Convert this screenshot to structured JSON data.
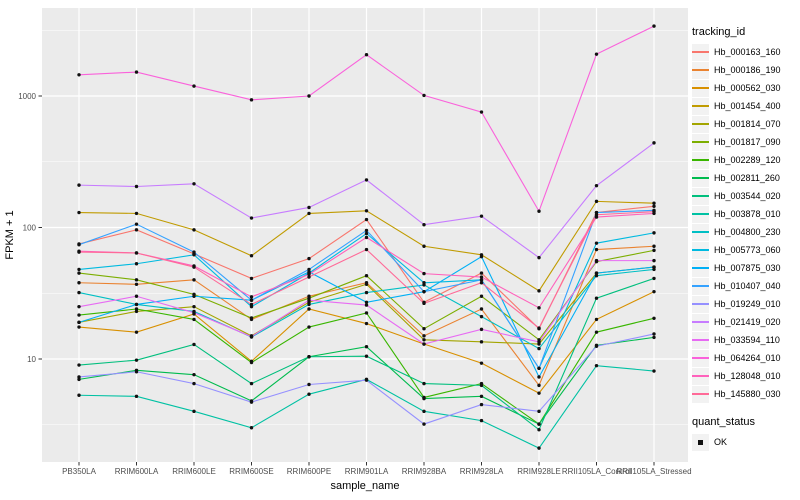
{
  "figure": {
    "background": "#FFFFFF",
    "panel_background": "#EBEBEB",
    "grid_color": "#FFFFFF",
    "tick_color": "#333333",
    "axis_text_color": "#4D4D4D",
    "title_text_color": "#000000",
    "point_color": "#111111"
  },
  "axes": {
    "x_title": "sample_name",
    "y_title": "FPKM + 1",
    "y_tick_labels": [
      "10",
      "100",
      "1000"
    ],
    "y_tick_values": [
      10,
      100,
      1000
    ],
    "y_minor_values": [
      3.162,
      31.62,
      316.2,
      3162
    ]
  },
  "legend": {
    "tracking_title": "tracking_id",
    "quant_title": "quant_status",
    "key_fill": "#F2F2F2",
    "quant_items": [
      {
        "label": "OK",
        "marker": "filled-square",
        "color": "#111111"
      }
    ]
  },
  "chart_data": {
    "type": "line",
    "y_scale": "log10",
    "ylim": [
      1.65,
      4670
    ],
    "grid": true,
    "legend_position": "right",
    "xlabel": "sample_name",
    "ylabel": "FPKM + 1",
    "categories": [
      "PB350LA",
      "RRIM600LA",
      "RRIM600LE",
      "RRIM600SE",
      "RRIM600PE",
      "RRIM901LA",
      "RRIM928BA",
      "RRIM928LA",
      "RRIM928LE",
      "RRII105LA_Control",
      "RRII105LA_Stressed"
    ],
    "series": [
      {
        "name": "Hb_000163_160",
        "color": "#F8766D",
        "values": [
          75,
          96,
          63,
          41,
          58,
          115,
          27,
          45,
          17,
          130,
          145
        ]
      },
      {
        "name": "Hb_000186_190",
        "color": "#EA8331",
        "values": [
          38,
          37,
          40,
          20,
          30,
          38,
          15,
          24,
          6.3,
          68,
          72
        ]
      },
      {
        "name": "Hb_000562_030",
        "color": "#D89000",
        "values": [
          17.5,
          16,
          22,
          9.6,
          24,
          18.6,
          13,
          9.3,
          5.5,
          20,
          32.5
        ]
      },
      {
        "name": "Hb_001454_400",
        "color": "#C09B00",
        "values": [
          130,
          128,
          96,
          61,
          128,
          134,
          72,
          62,
          33,
          158,
          153
        ]
      },
      {
        "name": "Hb_001814_070",
        "color": "#A3A500",
        "values": [
          19,
          23,
          25,
          15,
          27,
          37,
          14,
          13.5,
          13,
          45,
          50
        ]
      },
      {
        "name": "Hb_001817_090",
        "color": "#7CAE00",
        "values": [
          45,
          40,
          31,
          20.5,
          29,
          43,
          17,
          30,
          14,
          55,
          67
        ]
      },
      {
        "name": "Hb_002289_120",
        "color": "#39B600",
        "values": [
          21.6,
          24,
          20,
          9.4,
          17.5,
          22.4,
          5.1,
          6.5,
          3.2,
          16,
          20.4
        ]
      },
      {
        "name": "Hb_002811_260",
        "color": "#00BB4E",
        "values": [
          7.0,
          8.2,
          7.6,
          4.8,
          10.4,
          12.4,
          5.0,
          5.2,
          3.2,
          12.7,
          14.6
        ]
      },
      {
        "name": "Hb_003544_020",
        "color": "#00BF7D",
        "values": [
          9.0,
          9.8,
          12.9,
          6.5,
          10.4,
          10.5,
          6.5,
          6.3,
          2.9,
          29,
          41
        ]
      },
      {
        "name": "Hb_003878_010",
        "color": "#00C1A3",
        "values": [
          5.3,
          5.2,
          4.0,
          3.0,
          5.4,
          7.0,
          4.0,
          3.4,
          2.1,
          8.9,
          8.1
        ]
      },
      {
        "name": "Hb_004800_230",
        "color": "#00BFC4",
        "values": [
          32,
          26,
          23,
          14.7,
          26,
          32,
          36.6,
          21,
          12,
          43,
          48
        ]
      },
      {
        "name": "Hb_005773_060",
        "color": "#00BAE0",
        "values": [
          48,
          53,
          62,
          25,
          45,
          90,
          38,
          40,
          8.5,
          76,
          91
        ]
      },
      {
        "name": "Hb_007875_030",
        "color": "#00B0F6",
        "values": [
          19,
          26,
          30,
          28,
          46,
          27,
          32.5,
          60,
          7.3,
          45,
          50
        ]
      },
      {
        "name": "Hb_010407_040",
        "color": "#35A2FF",
        "values": [
          74,
          106,
          65,
          28,
          48,
          95,
          32.5,
          40,
          8.5,
          130,
          135
        ]
      },
      {
        "name": "Hb_019249_010",
        "color": "#9590FF",
        "values": [
          7.3,
          8.0,
          6.5,
          4.7,
          6.4,
          6.9,
          3.2,
          4.5,
          4.0,
          12.5,
          15.5
        ]
      },
      {
        "name": "Hb_021419_020",
        "color": "#C77CFF",
        "values": [
          210,
          205,
          215,
          118,
          142,
          230,
          105,
          122,
          59,
          208,
          440
        ]
      },
      {
        "name": "Hb_033594_110",
        "color": "#E76BF3",
        "values": [
          25,
          30,
          22.5,
          14.8,
          28,
          25.7,
          13,
          16.8,
          13.5,
          56,
          56
        ]
      },
      {
        "name": "Hb_064264_010",
        "color": "#FA62DB",
        "values": [
          1450,
          1520,
          1190,
          935,
          1000,
          2060,
          1010,
          755,
          133,
          2080,
          3400
        ]
      },
      {
        "name": "Hb_128048_010",
        "color": "#FF62BC",
        "values": [
          66,
          64,
          51,
          29.7,
          44,
          84,
          44.6,
          42,
          24.5,
          120,
          128
        ]
      },
      {
        "name": "Hb_145880_030",
        "color": "#FF6A98",
        "values": [
          65,
          64,
          50,
          26,
          42,
          68,
          26.5,
          38,
          17.2,
          125,
          132
        ]
      }
    ]
  }
}
